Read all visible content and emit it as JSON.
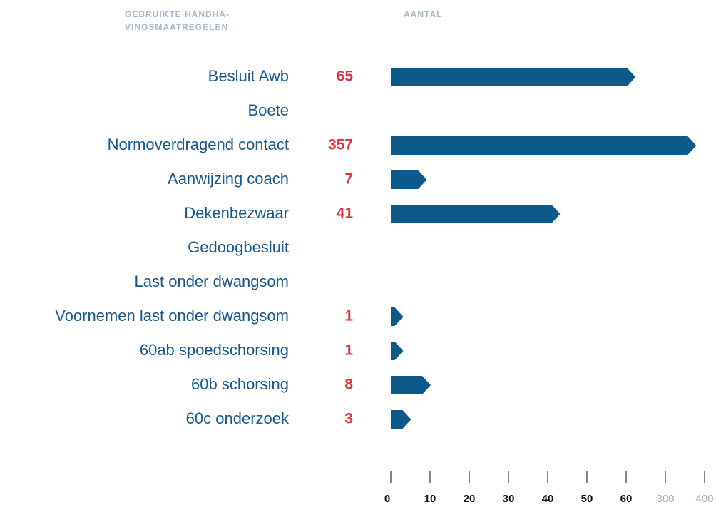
{
  "chart_data": {
    "type": "bar",
    "column_headers": [
      "GEBRUIKTE HANDHA-\nVINGSMAATREGELEN",
      "AANTAL"
    ],
    "categories": [
      "Besluit Awb",
      "Boete",
      "Normoverdragend contact",
      "Aanwijzing coach",
      "Dekenbezwaar",
      "Gedoogbesluit",
      "Last onder dwangsom",
      "Voornemen last onder dwangsom",
      "60ab spoedschorsing",
      "60b schorsing",
      "60c onderzoek"
    ],
    "values": [
      65,
      null,
      357,
      7,
      41,
      null,
      null,
      1,
      1,
      8,
      3
    ],
    "color": "#0b5a8a",
    "value_label_color": "#d9363e",
    "xlim": [
      0,
      400
    ],
    "xticks": [
      0,
      10,
      20,
      30,
      40,
      50,
      60,
      300,
      400
    ]
  }
}
